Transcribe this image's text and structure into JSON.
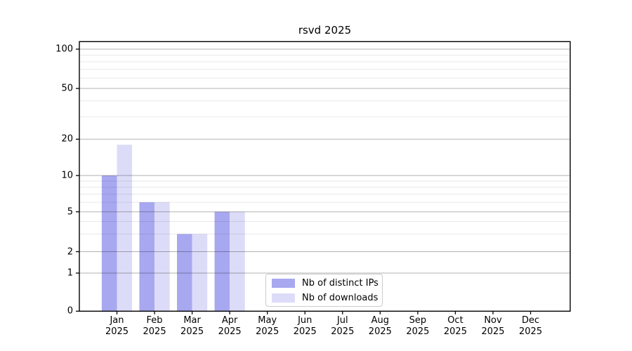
{
  "figure": {
    "background": "#ffffff"
  },
  "chart_data": {
    "type": "bar",
    "title": "rsvd 2025",
    "categories": [
      "Jan 2025",
      "Feb 2025",
      "Mar 2025",
      "Apr 2025",
      "May 2025",
      "Jun 2025",
      "Jul 2025",
      "Aug 2025",
      "Sep 2025",
      "Oct 2025",
      "Nov 2025",
      "Dec 2025"
    ],
    "series": [
      {
        "name": "Nb of distinct IPs",
        "color": "#a8a8f0",
        "values": [
          10,
          6,
          3,
          5,
          0,
          0,
          0,
          0,
          0,
          0,
          0,
          0
        ]
      },
      {
        "name": "Nb of downloads",
        "color": "#dcdcf8",
        "values": [
          18,
          6,
          3,
          5,
          0,
          0,
          0,
          0,
          0,
          0,
          0,
          0
        ]
      }
    ],
    "xlabel": "",
    "ylabel": "",
    "yaxis": {
      "scale": "log-like with 0 baseline",
      "ticks": [
        0,
        1,
        2,
        5,
        10,
        20,
        50,
        100
      ],
      "minor_ticks": [
        3,
        4,
        6,
        7,
        8,
        9,
        30,
        40,
        60,
        70,
        80,
        90
      ],
      "ylim": [
        0,
        110
      ]
    },
    "grid": {
      "major": true,
      "minor": true,
      "drawn_above_bars": true
    },
    "legend": {
      "position": "inside-bottom-center",
      "border_color": "#cccccc"
    }
  },
  "colors": {
    "axis": "#000000",
    "major_grid": "rgba(0,0,0,0.30)",
    "minor_grid": "rgba(0,0,0,0.09)",
    "text": "#000000"
  }
}
